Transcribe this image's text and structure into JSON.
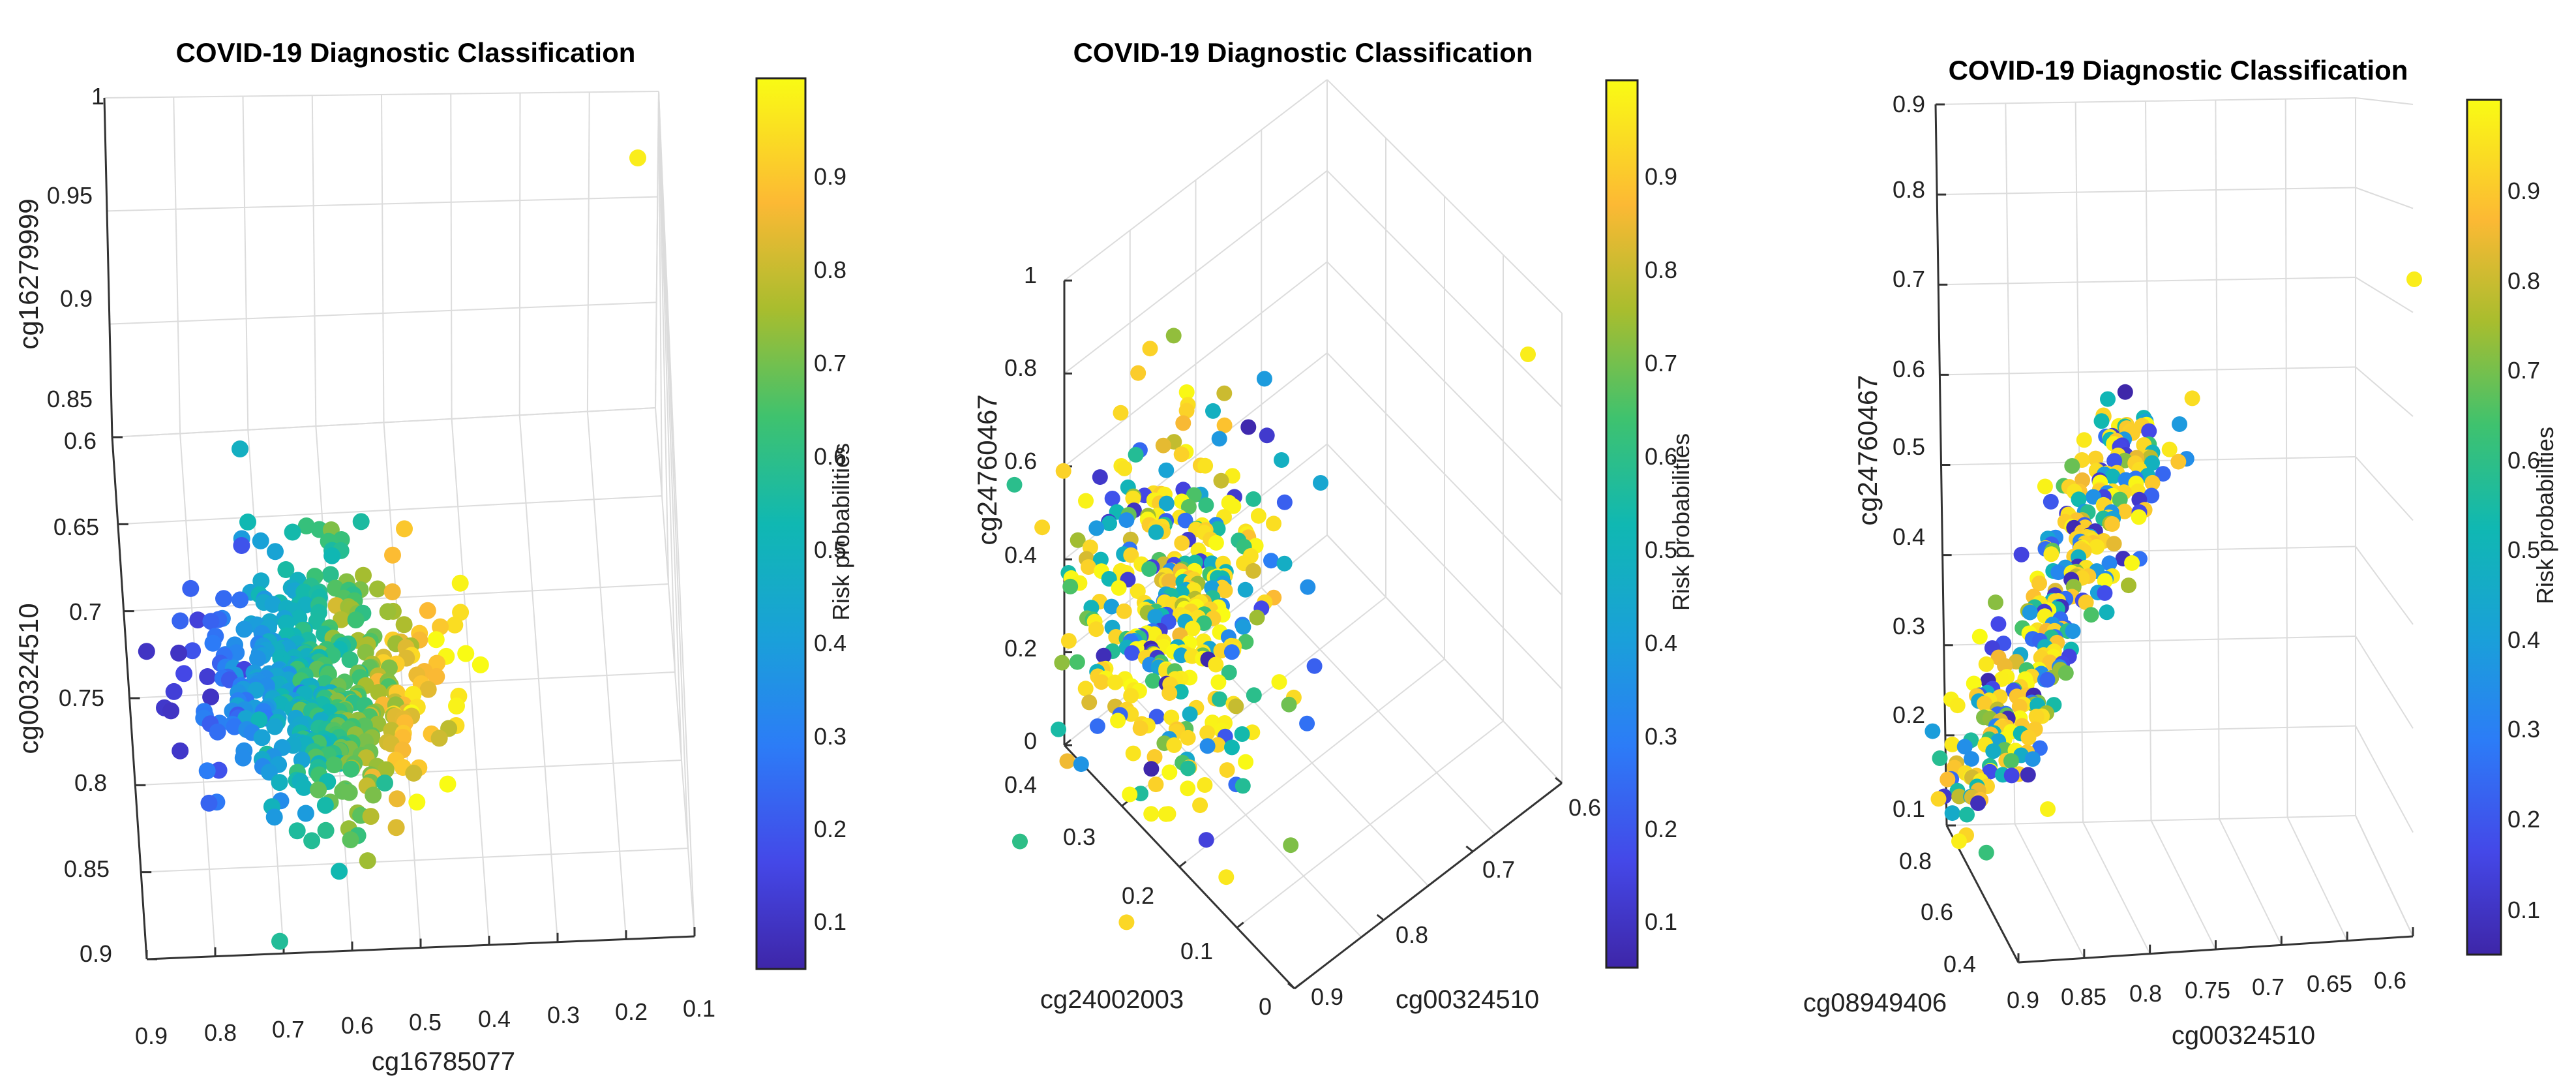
{
  "chart_data": [
    {
      "type": "scatter3d",
      "title": "COVID-19 Diagnostic Classification",
      "axes": [
        {
          "label": "cg16785077",
          "ticks": [
            "0.9",
            "0.8",
            "0.7",
            "0.6",
            "0.5",
            "0.4",
            "0.3",
            "0.2",
            "0.1"
          ]
        },
        {
          "label": "cg00324510",
          "ticks": [
            "0.6",
            "0.65",
            "0.7",
            "0.75",
            "0.8",
            "0.85",
            "0.9"
          ]
        },
        {
          "label": "cg16279999",
          "ticks": [
            "0.85",
            "0.9",
            "0.95",
            "1"
          ]
        }
      ],
      "colorbar": {
        "label": "Risk probabilities",
        "ticks": [
          "0.1",
          "0.2",
          "0.3",
          "0.4",
          "0.5",
          "0.6",
          "0.7",
          "0.8",
          "0.9"
        ],
        "range": [
          0.05,
          1.0
        ]
      },
      "n_points": 460,
      "outlier": {
        "cg16785077": 0.2,
        "cg00324510": 0.6,
        "cg16279999": 0.96,
        "risk": 0.97
      }
    },
    {
      "type": "scatter3d",
      "title": "COVID-19 Diagnostic Classification",
      "axes": [
        {
          "label": "cg00324510",
          "ticks": [
            "0.9",
            "0.8",
            "0.7",
            "0.6"
          ]
        },
        {
          "label": "cg24002003",
          "ticks": [
            "0.4",
            "0.3",
            "0.2",
            "0.1",
            "0"
          ]
        },
        {
          "label": "cg24760467",
          "ticks": [
            "0",
            "0.2",
            "0.4",
            "0.6",
            "0.8",
            "1"
          ]
        }
      ],
      "colorbar": {
        "label": "Risk probabilities",
        "ticks": [
          "0.1",
          "0.2",
          "0.3",
          "0.4",
          "0.5",
          "0.6",
          "0.7",
          "0.8",
          "0.9"
        ],
        "range": [
          0.05,
          1.0
        ]
      },
      "n_points": 380,
      "outlier": {
        "cg00324510": 0.6,
        "cg24002003": 0.0,
        "cg24760467": 0.9,
        "risk": 0.97
      }
    },
    {
      "type": "scatter3d",
      "title": "COVID-19 Diagnostic Classification",
      "axes": [
        {
          "label": "cg00324510",
          "ticks": [
            "0.9",
            "0.85",
            "0.8",
            "0.75",
            "0.7",
            "0.65",
            "0.6"
          ]
        },
        {
          "label": "cg08949406",
          "ticks": [
            "0.4",
            "0.6",
            "0.8"
          ]
        },
        {
          "label": "cg24760467",
          "ticks": [
            "0.1",
            "0.2",
            "0.3",
            "0.4",
            "0.5",
            "0.6",
            "0.7",
            "0.8",
            "0.9"
          ]
        }
      ],
      "colorbar": {
        "label": "Risk probabilities",
        "ticks": [
          "0.1",
          "0.2",
          "0.3",
          "0.4",
          "0.5",
          "0.6",
          "0.7",
          "0.8",
          "0.9"
        ],
        "range": [
          0.05,
          1.0
        ]
      },
      "n_points": 330,
      "outlier": {
        "cg00324510": 0.6,
        "cg08949406": 0.8,
        "cg24760467": 0.7,
        "risk": 0.97
      }
    }
  ]
}
